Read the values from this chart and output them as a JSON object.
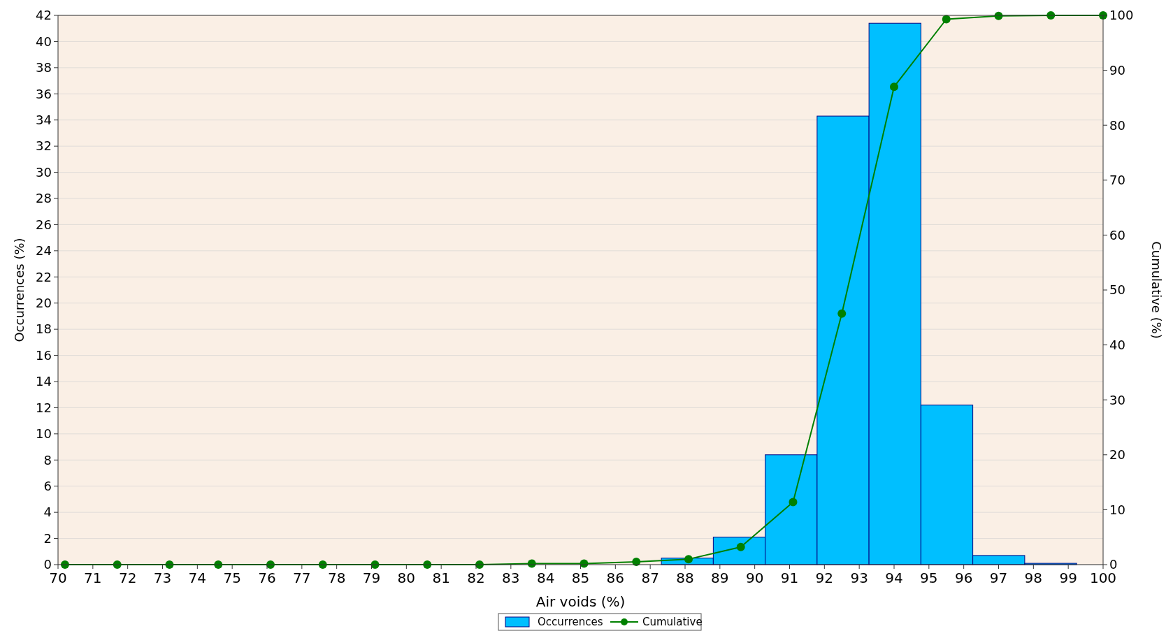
{
  "chart_data": {
    "type": "histogram",
    "xlabel": "Air voids (%)",
    "ylabel": "Occurrences (%)",
    "y2label": "Cumulative (%)",
    "xlim": [
      70,
      100
    ],
    "xticks": [
      70,
      71,
      72,
      73,
      74,
      75,
      76,
      77,
      78,
      79,
      80,
      81,
      82,
      83,
      84,
      85,
      86,
      87,
      88,
      89,
      90,
      91,
      92,
      93,
      94,
      95,
      96,
      97,
      98,
      99,
      100
    ],
    "ylim": [
      0,
      42
    ],
    "yticks": [
      0,
      2,
      4,
      6,
      8,
      10,
      12,
      14,
      16,
      18,
      20,
      22,
      24,
      26,
      28,
      30,
      32,
      34,
      36,
      38,
      40,
      42
    ],
    "y2lim": [
      0,
      100
    ],
    "y2ticks": [
      0,
      10,
      20,
      30,
      40,
      50,
      60,
      70,
      80,
      90,
      100
    ],
    "grid": "y",
    "legend": "bottom",
    "series": [
      {
        "name": "Occurrences",
        "color": "#00bfff",
        "bins": [
          87.32,
          88.81,
          90.3,
          91.79,
          93.28,
          94.77,
          96.26,
          97.75,
          99.24
        ],
        "values": [
          0.5,
          2.1,
          8.4,
          34.3,
          41.4,
          12.2,
          0.7,
          0.1
        ]
      },
      {
        "name": "Cumulative",
        "type": "line",
        "axis": "y2",
        "color": "#008000",
        "marker": "circle",
        "x": [
          70.2,
          71.7,
          73.2,
          74.6,
          76.1,
          77.6,
          79.1,
          80.6,
          82.1,
          83.6,
          85.1,
          86.6,
          88.1,
          89.6,
          91.1,
          92.5,
          94.0,
          95.5,
          97.0,
          98.5,
          100
        ],
        "values": [
          0,
          0,
          0,
          0,
          0,
          0,
          0,
          0,
          0,
          0.2,
          0.2,
          0.5,
          1,
          3.2,
          11.4,
          45.7,
          87,
          99.3,
          99.9,
          100,
          100
        ]
      }
    ]
  }
}
